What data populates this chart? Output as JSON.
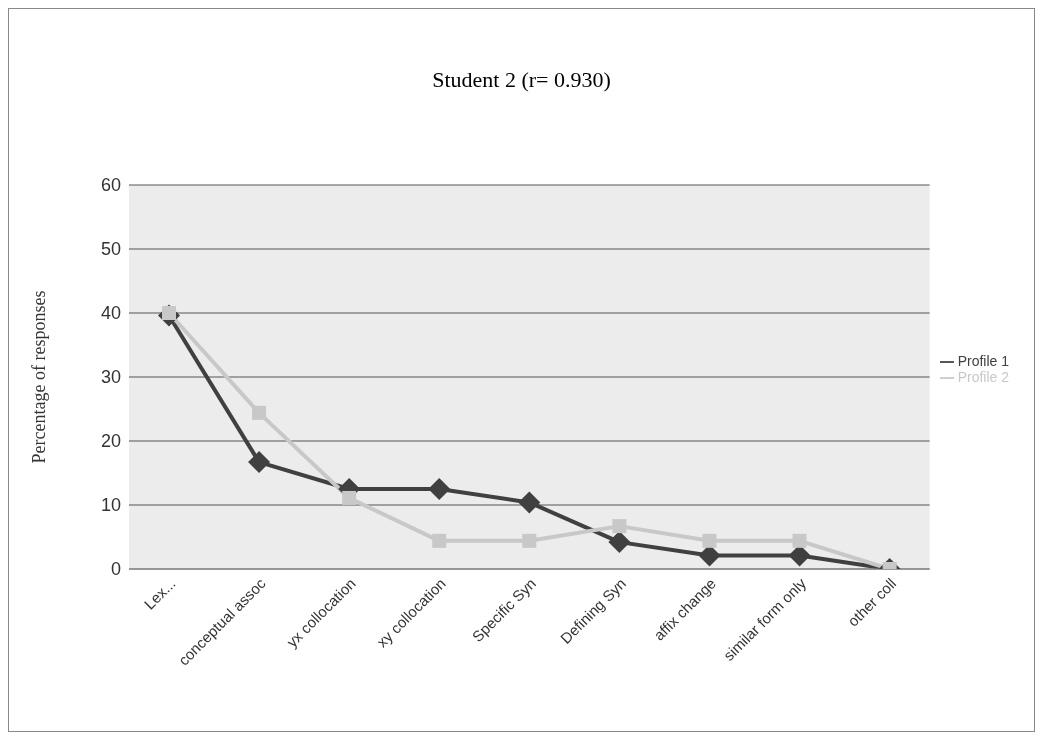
{
  "chart_data": {
    "type": "line",
    "title": "Student 2 (r= 0.930)",
    "ylabel": "Percentage of responses",
    "categories": [
      "Lex...",
      "conceptual assoc",
      "yx collocation",
      "xy collocation",
      "Specific Syn",
      "Defining Syn",
      "affix change",
      "similar form only",
      "other coll"
    ],
    "series": [
      {
        "name": "Profile 1",
        "color": "#404040",
        "marker": "diamond",
        "values": [
          39.6,
          16.7,
          12.5,
          12.5,
          10.4,
          4.2,
          2.1,
          2.1,
          0
        ]
      },
      {
        "name": "Profile 2",
        "color": "#c8c8c8",
        "marker": "square",
        "values": [
          40,
          24.4,
          11.1,
          4.4,
          4.4,
          6.7,
          4.4,
          4.4,
          0
        ]
      }
    ],
    "ylim": [
      0,
      60
    ],
    "yticks": [
      0,
      10,
      20,
      30,
      40,
      50,
      60
    ],
    "grid": "y",
    "legend": "right"
  }
}
